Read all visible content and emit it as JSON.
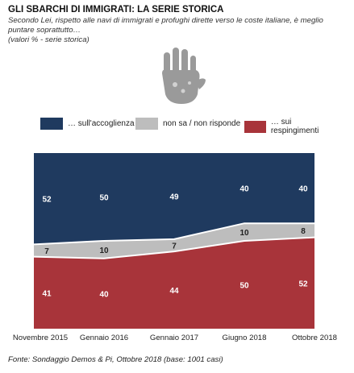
{
  "header": {
    "title": "GLI SBARCHI DI IMMIGRATI: LA SERIE STORICA",
    "subtitle": "Secondo Lei, rispetto alle navi di immigrati e profughi dirette verso le coste italiane, è meglio puntare soprattutto…",
    "note": "(valori % - serie storica)"
  },
  "legend": [
    {
      "label": "… sull'accoglienza"
    },
    {
      "label": "non sa / non risponde"
    },
    {
      "label": "… sui respingimenti"
    }
  ],
  "source": "Fonte: Sondaggio Demos & Pi, Ottobre 2018 (base: 1001 casi)",
  "colors": {
    "accoglienza": "#1f3a5f",
    "non_sa": "#bdbdbd",
    "respingimenti": "#a8343a"
  },
  "chart_data": {
    "type": "area",
    "stacked": true,
    "categories": [
      "Novembre 2015",
      "Gennaio 2016",
      "Gennaio 2017",
      "Giugno 2018",
      "Ottobre 2018"
    ],
    "series": [
      {
        "name": "… sui respingimenti",
        "values": [
          41,
          40,
          44,
          50,
          52
        ]
      },
      {
        "name": "non sa / non risponde",
        "values": [
          7,
          10,
          7,
          10,
          8
        ]
      },
      {
        "name": "… sull'accoglienza",
        "values": [
          52,
          50,
          49,
          40,
          40
        ]
      }
    ],
    "ylim": [
      0,
      100
    ],
    "grid": false,
    "legend_position": "top"
  }
}
